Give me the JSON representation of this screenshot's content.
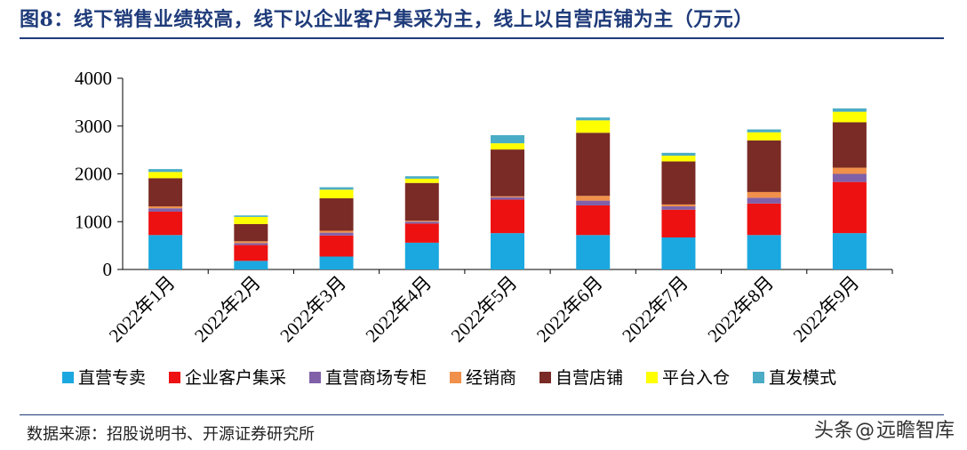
{
  "header": {
    "title": "图8：线下销售业绩较高，线下以企业客户集采为主，线上以自营店铺为主（万元）"
  },
  "footer": {
    "source": "数据来源：招股说明书、开源证券研究所",
    "watermark_prefix": "头条",
    "watermark_at": "@",
    "watermark_name": "远瞻智库"
  },
  "chart_data": {
    "type": "bar",
    "stacked": true,
    "categories": [
      "2022年1月",
      "2022年2月",
      "2022年3月",
      "2022年4月",
      "2022年5月",
      "2022年6月",
      "2022年7月",
      "2022年8月",
      "2022年9月"
    ],
    "ylim": [
      0,
      4000
    ],
    "yticks": [
      0,
      1000,
      2000,
      3000,
      4000
    ],
    "legend_position": "bottom",
    "series": [
      {
        "name": "直营专卖",
        "color": "#1ba8e0",
        "values": [
          720,
          180,
          270,
          560,
          760,
          720,
          670,
          720,
          760
        ]
      },
      {
        "name": "企业客户集采",
        "color": "#ee1111",
        "values": [
          490,
          330,
          440,
          400,
          700,
          620,
          580,
          660,
          1070
        ]
      },
      {
        "name": "直营商场专柜",
        "color": "#8060a8",
        "values": [
          70,
          40,
          60,
          40,
          50,
          100,
          70,
          120,
          170
        ]
      },
      {
        "name": "经销商",
        "color": "#f0904a",
        "values": [
          40,
          40,
          40,
          20,
          20,
          100,
          40,
          120,
          130
        ]
      },
      {
        "name": "自营店铺",
        "color": "#7a2b25",
        "values": [
          590,
          360,
          680,
          790,
          980,
          1320,
          900,
          1080,
          950
        ]
      },
      {
        "name": "平台入仓",
        "color": "#ffff00",
        "values": [
          130,
          150,
          180,
          90,
          130,
          260,
          120,
          170,
          220
        ]
      },
      {
        "name": "直发模式",
        "color": "#4bacc6",
        "values": [
          60,
          30,
          50,
          50,
          170,
          60,
          60,
          60,
          70
        ]
      }
    ]
  }
}
